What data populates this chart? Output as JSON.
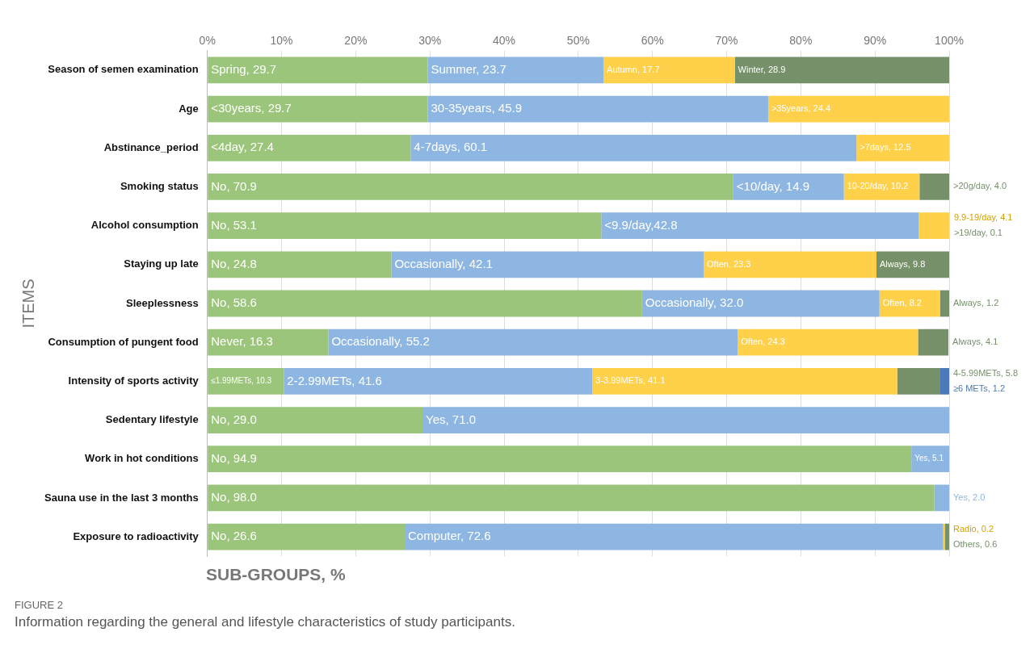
{
  "chart_data": {
    "type": "bar",
    "orientation": "horizontal",
    "stacked": true,
    "xlabel": "SUB-GROUPS, %",
    "ylabel": "ITEMS",
    "categories": [
      "Season of semen examination",
      "Age",
      "Abstinance_period",
      "Smoking status",
      "Alcohol consumption",
      "Staying up late",
      "Sleeplessness",
      "Consumption of pungent food",
      "Intensity of sports activity",
      "Sedentary lifestyle",
      "Work in hot conditions",
      "Sauna use in the last 3 months",
      "Exposure to radioactivity"
    ],
    "xlim": [
      0,
      100
    ],
    "xticks": [
      {
        "value": 0,
        "label": "0%"
      },
      {
        "value": 10,
        "label": "10%"
      },
      {
        "value": 20,
        "label": "20%"
      },
      {
        "value": 30,
        "label": "30%"
      },
      {
        "value": 40,
        "label": "40%"
      },
      {
        "value": 50,
        "label": "50%"
      },
      {
        "value": 60,
        "label": "60%"
      },
      {
        "value": 70,
        "label": "70%"
      },
      {
        "value": 80,
        "label": "80%"
      },
      {
        "value": 90,
        "label": "90%"
      },
      {
        "value": 100,
        "label": "100%"
      }
    ],
    "grid": "x",
    "series": [
      {
        "color": "#9bc57a",
        "values": [
          29.7,
          29.7,
          27.4,
          70.9,
          53.1,
          24.8,
          58.6,
          16.3,
          10.3,
          29.0,
          94.9,
          98.0,
          26.6
        ],
        "value_labels": [
          "Spring, 29.7",
          "<30years, 29.7",
          "<4day, 27.4",
          "No, 70.9",
          "No, 53.1",
          "No, 24.8",
          "No, 58.6",
          "Never, 16.3",
          "≤1.99METs, 10.3",
          "No, 29.0",
          "No, 94.9",
          "No, 98.0",
          "No, 26.6"
        ]
      },
      {
        "color": "#8db6e2",
        "values": [
          23.7,
          45.9,
          60.1,
          14.9,
          42.8,
          42.1,
          32.0,
          55.2,
          41.6,
          71.0,
          5.1,
          2.0,
          72.6
        ],
        "value_labels": [
          "Summer, 23.7",
          "30-35years, 45.9",
          "4-7days, 60.1",
          "<10/day, 14.9",
          "<9.9/day,42.8",
          "Occasionally, 42.1",
          "Occasionally, 32.0",
          "Occasionally, 55.2",
          "2-2.99METs, 41.6",
          "Yes, 71.0",
          "Yes, 5.1",
          "Yes, 2.0",
          "Computer, 72.6"
        ]
      },
      {
        "color": "#ffd04a",
        "values": [
          17.7,
          24.4,
          12.5,
          10.2,
          4.1,
          23.3,
          8.2,
          24.3,
          41.1,
          null,
          null,
          null,
          0.2
        ],
        "value_labels": [
          "Autumn, 17.7",
          ">35years, 24.4",
          ">7days, 12.5",
          "10-20/day, 10.2",
          "9.9-19/day, 4.1",
          "Often, 23.3",
          "Often, 8.2",
          "Often, 24.3",
          "3-3.99METs, 41.1",
          null,
          null,
          null,
          "Radio, 0.2"
        ]
      },
      {
        "color": "#76906a",
        "values": [
          28.9,
          null,
          null,
          4.0,
          0.1,
          9.8,
          1.2,
          4.1,
          5.8,
          null,
          null,
          null,
          0.6
        ],
        "value_labels": [
          "Winter, 28.9",
          null,
          null,
          ">20g/day, 4.0",
          ">19/day, 0.1",
          "Always, 9.8",
          "Always, 1.2",
          "Always, 4.1",
          "4-5.99METs, 5.8",
          null,
          null,
          null,
          "Others, 0.6"
        ]
      },
      {
        "color": "#4a78b8",
        "values": [
          null,
          null,
          null,
          null,
          null,
          null,
          null,
          null,
          1.2,
          null,
          null,
          null,
          null
        ],
        "value_labels": [
          null,
          null,
          null,
          null,
          null,
          null,
          null,
          null,
          "≥6 METs, 1.2",
          null,
          null,
          null,
          null
        ]
      }
    ],
    "annotations": [
      "FIGURE 2",
      "Information regarding the general and lifestyle characteristics of study participants."
    ]
  }
}
